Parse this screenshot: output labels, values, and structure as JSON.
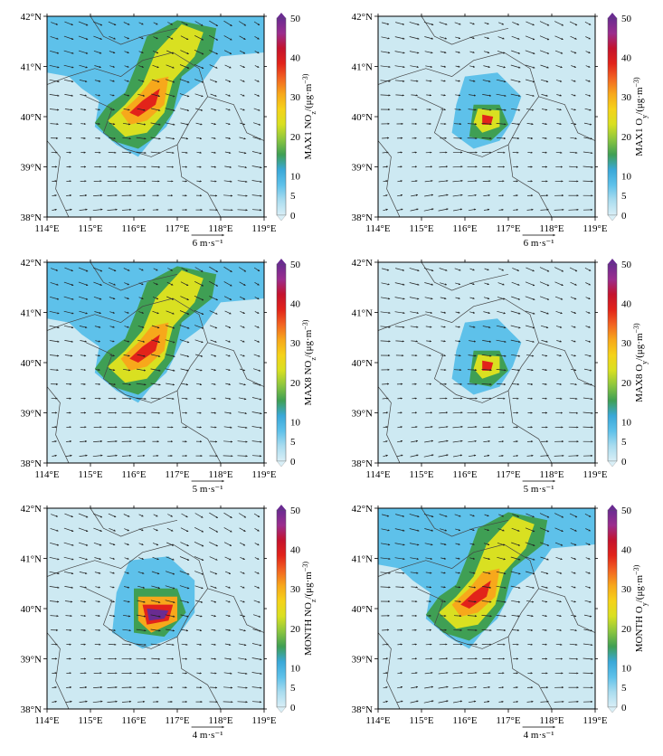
{
  "colors": {
    "background_field": "#cde9f2",
    "border_lines": "#444444",
    "arrow": "#222222",
    "colorbar": [
      "#d9eff7",
      "#a9dcef",
      "#5ec1ea",
      "#3aa8d8",
      "#3f9f54",
      "#8cc63f",
      "#d9e021",
      "#f5d21a",
      "#f7a81b",
      "#f26522",
      "#e2231a",
      "#c4132d",
      "#9b2d8e",
      "#6a2c91"
    ]
  },
  "chart_data": [
    {
      "type": "heatmap",
      "panel": "a",
      "colorbar_label": "MAX1 NO",
      "colorbar_label_sub": "z",
      "colorbar_label_rest": "/(μg·m",
      "colorbar_label_end": "−3)",
      "colorbar_ticks": [
        "0",
        "5",
        "10",
        "20",
        "30",
        "40",
        "50"
      ],
      "colorbar_tick_values": [
        0,
        5,
        10,
        20,
        30,
        40,
        50
      ],
      "x_ticks": [
        "114°E",
        "115°E",
        "116°E",
        "117°E",
        "118°E",
        "119°E"
      ],
      "y_ticks": [
        "38°N",
        "39°N",
        "40°N",
        "41°N",
        "42°N"
      ],
      "xlim": [
        114,
        119
      ],
      "ylim": [
        38,
        42
      ],
      "wind_scale_label": "6 m·s⁻¹",
      "wind_scale_value": 6,
      "pattern": "plume"
    },
    {
      "type": "heatmap",
      "panel": "b",
      "colorbar_label": "MAX1 O",
      "colorbar_label_sub": "y",
      "colorbar_label_rest": "/(μg·m",
      "colorbar_label_end": "−3)",
      "colorbar_ticks": [
        "0",
        "5",
        "10",
        "20",
        "30",
        "40",
        "50"
      ],
      "colorbar_tick_values": [
        0,
        5,
        10,
        20,
        30,
        40,
        50
      ],
      "x_ticks": [
        "114°E",
        "115°E",
        "116°E",
        "117°E",
        "118°E",
        "119°E"
      ],
      "y_ticks": [
        "38°N",
        "39°N",
        "40°N",
        "41°N",
        "42°N"
      ],
      "xlim": [
        114,
        119
      ],
      "ylim": [
        38,
        42
      ],
      "wind_scale_label": "6 m·s⁻¹",
      "wind_scale_value": 6,
      "pattern": "compact"
    },
    {
      "type": "heatmap",
      "panel": "c",
      "colorbar_label": "MAX8 NO",
      "colorbar_label_sub": "z",
      "colorbar_label_rest": "/(μg·m",
      "colorbar_label_end": "−3)",
      "colorbar_ticks": [
        "0",
        "5",
        "10",
        "20",
        "30",
        "40",
        "50"
      ],
      "colorbar_tick_values": [
        0,
        5,
        10,
        20,
        30,
        40,
        50
      ],
      "x_ticks": [
        "114°E",
        "115°E",
        "116°E",
        "117°E",
        "118°E",
        "119°E"
      ],
      "y_ticks": [
        "38°N",
        "39°N",
        "40°N",
        "41°N",
        "42°N"
      ],
      "xlim": [
        114,
        119
      ],
      "ylim": [
        38,
        42
      ],
      "wind_scale_label": "5 m·s⁻¹",
      "wind_scale_value": 5,
      "pattern": "plume"
    },
    {
      "type": "heatmap",
      "panel": "d",
      "colorbar_label": "MAX8 O",
      "colorbar_label_sub": "y",
      "colorbar_label_rest": "/(μg·m",
      "colorbar_label_end": "−3)",
      "colorbar_ticks": [
        "0",
        "5",
        "10",
        "20",
        "30",
        "40",
        "50"
      ],
      "colorbar_tick_values": [
        0,
        5,
        10,
        20,
        30,
        40,
        50
      ],
      "x_ticks": [
        "114°E",
        "115°E",
        "116°E",
        "117°E",
        "118°E",
        "119°E"
      ],
      "y_ticks": [
        "38°N",
        "39°N",
        "40°N",
        "41°N",
        "42°N"
      ],
      "xlim": [
        114,
        119
      ],
      "ylim": [
        38,
        42
      ],
      "wind_scale_label": "5 m·s⁻¹",
      "wind_scale_value": 5,
      "pattern": "compact"
    },
    {
      "type": "heatmap",
      "panel": "e",
      "colorbar_label": "MONTH NO",
      "colorbar_label_sub": "z",
      "colorbar_label_rest": "/(μg·m",
      "colorbar_label_end": "−3)",
      "colorbar_ticks": [
        "0",
        "5",
        "10",
        "20",
        "30",
        "40",
        "50"
      ],
      "colorbar_tick_values": [
        0,
        5,
        10,
        20,
        30,
        40,
        50
      ],
      "x_ticks": [
        "114°E",
        "115°E",
        "116°E",
        "117°E",
        "118°E",
        "119°E"
      ],
      "y_ticks": [
        "38°N",
        "39°N",
        "40°N",
        "41°N",
        "42°N"
      ],
      "xlim": [
        114,
        119
      ],
      "ylim": [
        38,
        42
      ],
      "wind_scale_label": "4 m·s⁻¹",
      "wind_scale_value": 4,
      "pattern": "compact_strong"
    },
    {
      "type": "heatmap",
      "panel": "f",
      "colorbar_label": "MONTH O",
      "colorbar_label_sub": "y",
      "colorbar_label_rest": "/(μg·m",
      "colorbar_label_end": "−3)",
      "colorbar_ticks": [
        "0",
        "5",
        "10",
        "20",
        "30",
        "40",
        "50"
      ],
      "colorbar_tick_values": [
        0,
        5,
        10,
        20,
        30,
        40,
        50
      ],
      "x_ticks": [
        "114°E",
        "115°E",
        "116°E",
        "117°E",
        "118°E",
        "119°E"
      ],
      "y_ticks": [
        "38°N",
        "39°N",
        "40°N",
        "41°N",
        "42°N"
      ],
      "xlim": [
        114,
        119
      ],
      "ylim": [
        38,
        42
      ],
      "wind_scale_label": "4 m·s⁻¹",
      "wind_scale_value": 4,
      "pattern": "plume"
    }
  ]
}
